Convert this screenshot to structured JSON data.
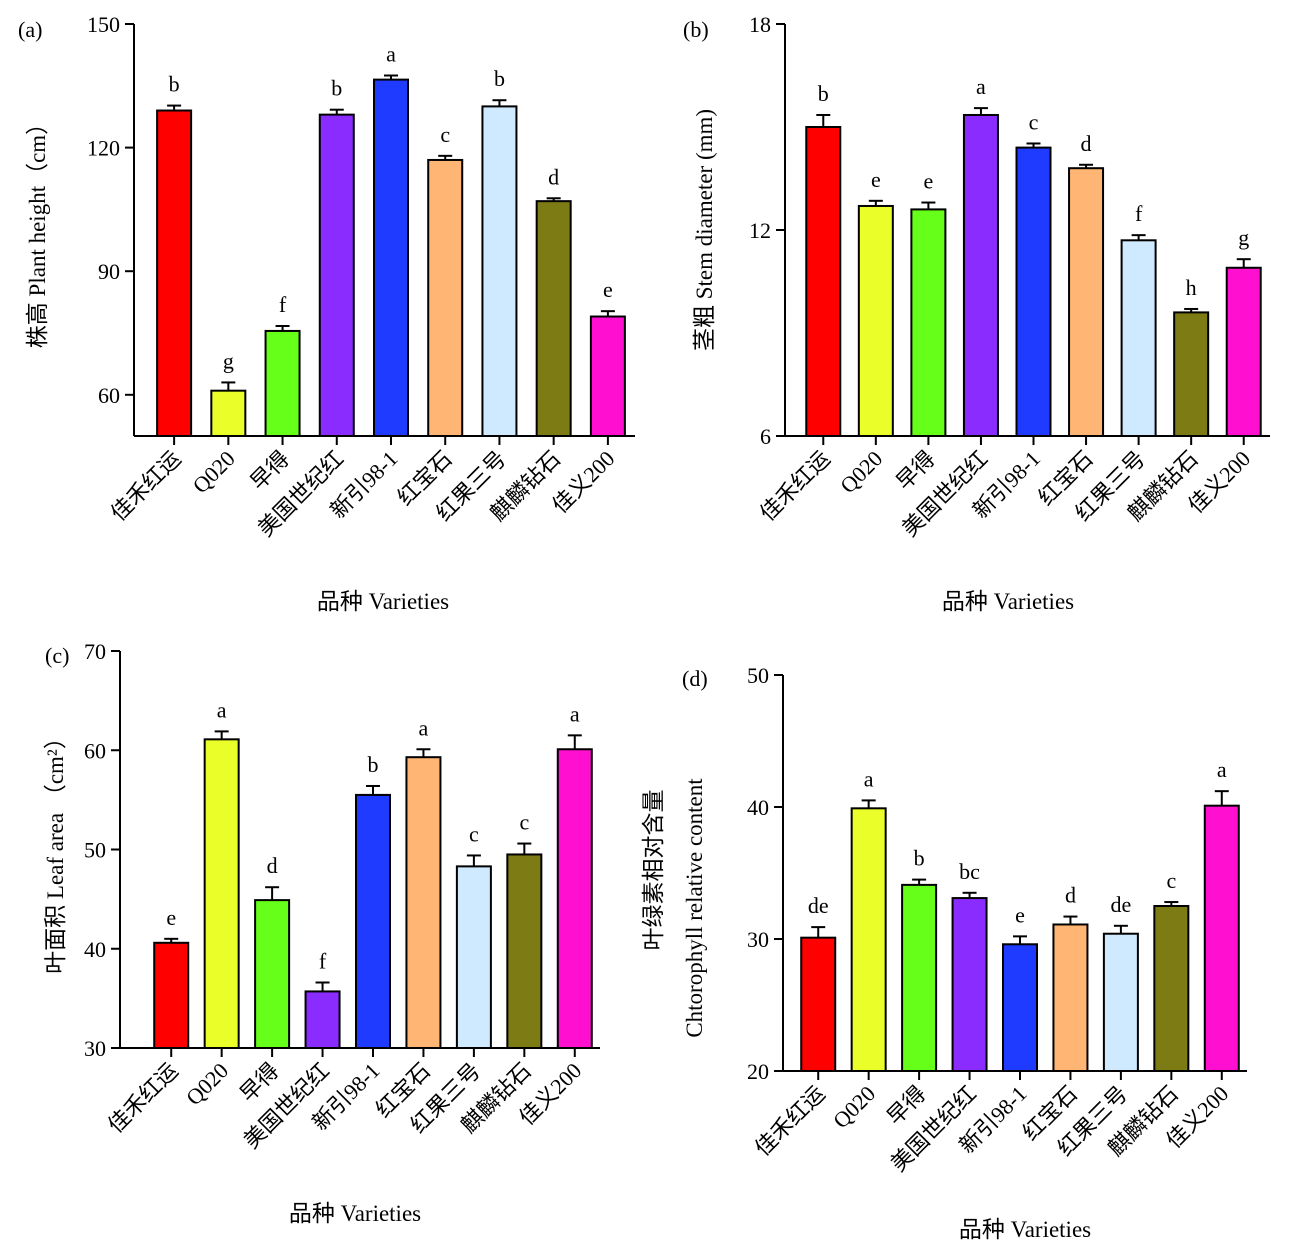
{
  "figure": {
    "colors": [
      "#ff0000",
      "#eaff2a",
      "#66ff19",
      "#8b2cff",
      "#1f3bff",
      "#ffb573",
      "#cfe9ff",
      "#7d7b14",
      "#ff0fcf"
    ]
  },
  "chart_data": [
    {
      "panel": "(a)",
      "type": "bar",
      "categories": [
        "佳禾红运",
        "Q020",
        "早得",
        "美国世纪红",
        "新引98-1",
        "红宝石",
        "红果三号",
        "麒麟钻石",
        "佳义200"
      ],
      "values": [
        129,
        61,
        75.5,
        128,
        136.5,
        117,
        130,
        107,
        79
      ],
      "errors": [
        1.2,
        2.0,
        1.2,
        1.2,
        1.0,
        1.0,
        1.5,
        0.7,
        1.3
      ],
      "letters": [
        "b",
        "g",
        "f",
        "b",
        "a",
        "c",
        "b",
        "d",
        "e"
      ],
      "xlabel": "品种 Varieties",
      "ylabel": "株高 Plant height（cm）",
      "ylim": [
        50,
        150
      ],
      "yticks": [
        60,
        90,
        120,
        150
      ],
      "grid": false
    },
    {
      "panel": "(b)",
      "type": "bar",
      "categories": [
        "佳禾红运",
        "Q020",
        "早得",
        "美国世纪红",
        "新引98-1",
        "红宝石",
        "红果三号",
        "麒麟钻石",
        "佳义200"
      ],
      "values": [
        15.0,
        12.7,
        12.6,
        15.35,
        14.4,
        13.8,
        11.7,
        9.6,
        10.9
      ],
      "errors": [
        0.35,
        0.15,
        0.2,
        0.2,
        0.12,
        0.1,
        0.15,
        0.1,
        0.25
      ],
      "letters": [
        "b",
        "e",
        "e",
        "a",
        "c",
        "d",
        "f",
        "h",
        "g"
      ],
      "xlabel": "品种 Varieties",
      "ylabel": "茎粗 Stem diameter (mm)",
      "ylim": [
        6,
        18
      ],
      "yticks": [
        6,
        12,
        18
      ],
      "grid": false
    },
    {
      "panel": "(c)",
      "type": "bar",
      "categories": [
        "佳禾红运",
        "Q020",
        "早得",
        "美国世纪红",
        "新引98-1",
        "红宝石",
        "红果三号",
        "麒麟钻石",
        "佳义200"
      ],
      "values": [
        40.6,
        61.1,
        44.9,
        35.7,
        55.5,
        59.3,
        48.3,
        49.5,
        60.1
      ],
      "errors": [
        0.4,
        0.8,
        1.3,
        0.9,
        0.9,
        0.8,
        1.1,
        1.1,
        1.4
      ],
      "letters": [
        "e",
        "a",
        "d",
        "f",
        "b",
        "a",
        "c",
        "c",
        "a"
      ],
      "xlabel": "品种 Varieties",
      "ylabel": "叶面积  Leaf area  （cm²）",
      "ylim": [
        30,
        70
      ],
      "yticks": [
        30,
        40,
        50,
        60,
        70
      ],
      "grid": false
    },
    {
      "panel": "(d)",
      "type": "bar",
      "categories": [
        "佳禾红运",
        "Q020",
        "早得",
        "美国世纪红",
        "新引98-1",
        "红宝石",
        "红果三号",
        "麒麟钻石",
        "佳义200"
      ],
      "values": [
        30.1,
        39.9,
        34.1,
        33.1,
        29.6,
        31.1,
        30.4,
        32.5,
        40.1
      ],
      "errors": [
        0.8,
        0.6,
        0.4,
        0.4,
        0.6,
        0.6,
        0.6,
        0.3,
        1.1
      ],
      "letters": [
        "de",
        "a",
        "b",
        "bc",
        "e",
        "d",
        "de",
        "c",
        "a"
      ],
      "xlabel": "品种 Varieties",
      "ylabel": "叶绿素相对含量",
      "ylabel2": "Chtorophyll relative content",
      "ylim": [
        20,
        50
      ],
      "yticks": [
        20,
        30,
        40,
        50
      ],
      "grid": false
    }
  ]
}
